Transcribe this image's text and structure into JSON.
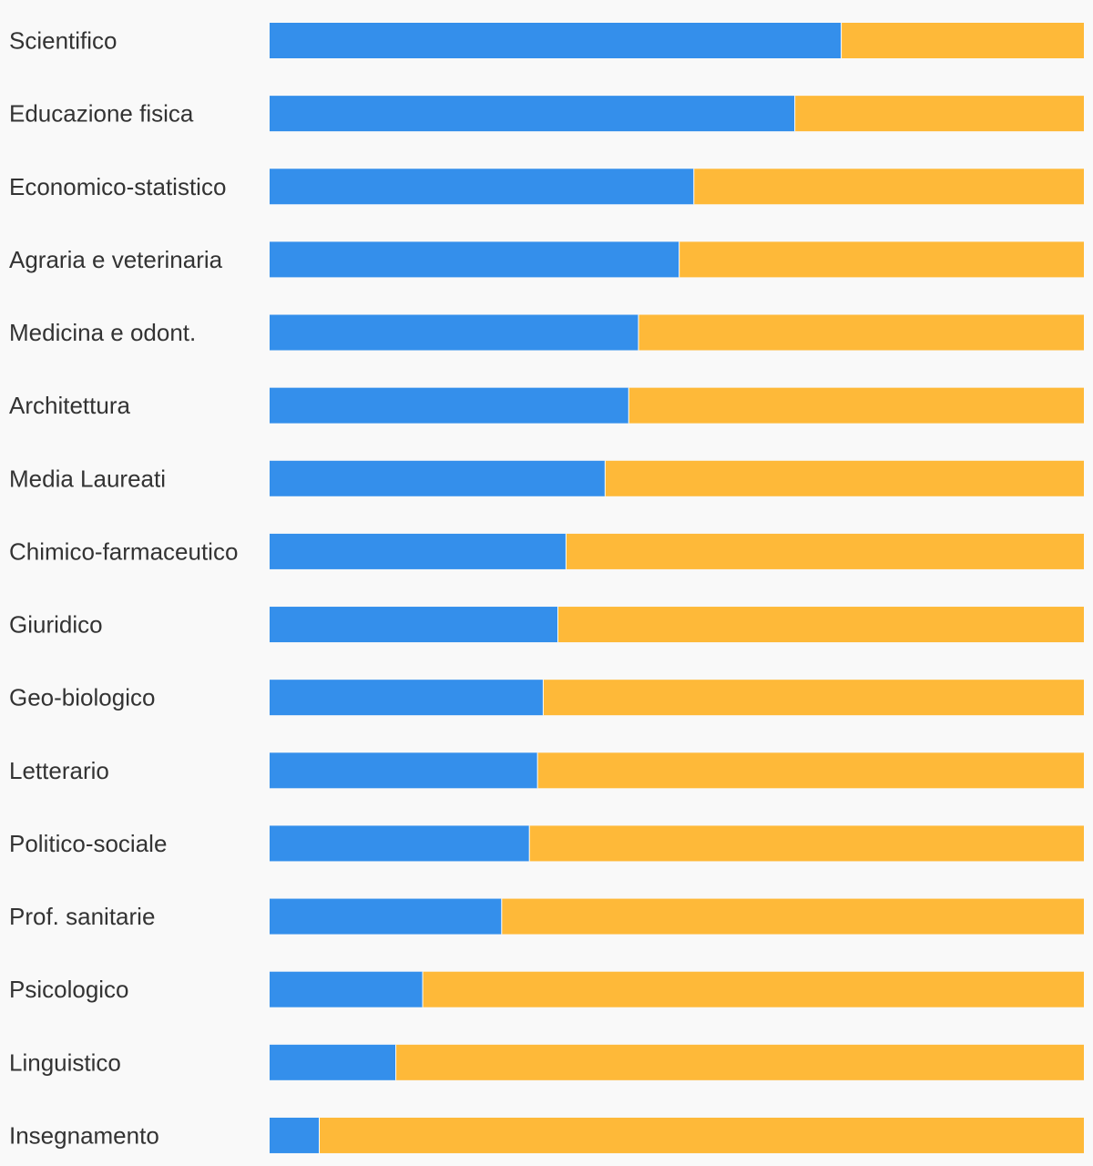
{
  "chart_data": {
    "type": "bar",
    "orientation": "horizontal",
    "stacked": true,
    "normalized": true,
    "title": "",
    "xlabel": "",
    "ylabel": "",
    "xlim": [
      0,
      100
    ],
    "grid": false,
    "legend": "none",
    "categories": [
      "Scientifico",
      "Educazione fisica",
      "Economico-statistico",
      "Agraria e veterinaria",
      "Medicina e odont.",
      "Architettura",
      "Media Laureati",
      "Chimico-farmaceutico",
      "Giuridico",
      "Geo-biologico",
      "Letterario",
      "Politico-sociale",
      "Prof. sanitarie",
      "Psicologico",
      "Linguistico",
      "Insegnamento"
    ],
    "series": [
      {
        "color": "#348feb",
        "values": [
          70.2,
          64.5,
          52.1,
          50.3,
          45.3,
          44.1,
          41.2,
          36.4,
          35.4,
          33.6,
          32.9,
          31.9,
          28.5,
          18.8,
          15.5,
          6.1
        ]
      },
      {
        "color": "#feb939",
        "values": [
          29.8,
          35.5,
          47.9,
          49.7,
          54.7,
          55.9,
          58.8,
          63.6,
          64.6,
          66.4,
          67.1,
          68.1,
          71.5,
          81.2,
          84.5,
          93.9
        ]
      }
    ]
  }
}
